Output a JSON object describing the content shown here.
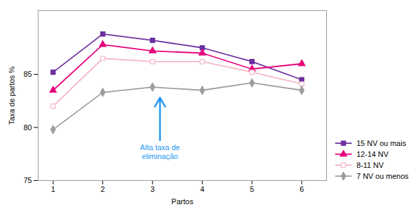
{
  "chart_data": {
    "type": "line",
    "x": [
      1,
      2,
      3,
      4,
      5,
      6
    ],
    "series": [
      {
        "name": "15 NV ou mais",
        "color": "#6B2FA0",
        "marker": "square",
        "values": [
          85.2,
          88.8,
          88.2,
          87.5,
          86.2,
          84.5
        ]
      },
      {
        "name": "12-14 NV",
        "color": "#E8007A",
        "marker": "triangle",
        "values": [
          83.5,
          87.8,
          87.2,
          87.0,
          85.5,
          86.0
        ]
      },
      {
        "name": "8-11 NV",
        "color": "#F4B8C4",
        "marker": "square-open",
        "values": [
          82.0,
          86.5,
          86.2,
          86.2,
          85.2,
          84.1
        ]
      },
      {
        "name": "7 NV ou menos",
        "color": "#9E9E9E",
        "marker": "diamond",
        "values": [
          79.8,
          83.3,
          83.8,
          83.5,
          84.2,
          83.5
        ]
      }
    ],
    "xlabel": "Partos",
    "ylabel": "Taxa de partos %",
    "xlim": [
      0.7,
      6.5
    ],
    "xticks": [
      1,
      2,
      3,
      4,
      5,
      6
    ],
    "ylim": [
      75,
      91
    ],
    "yticks": [
      75,
      80,
      85
    ],
    "grid": false,
    "legend": "lower right",
    "annotations": [
      {
        "text": "Alta taxa de\neliminação",
        "x": 3.15,
        "y": 78.5,
        "color": "#2196F3",
        "arrow": {
          "x": 3.15,
          "y_tail": 78.8,
          "y_head": 82.8
        }
      }
    ]
  }
}
